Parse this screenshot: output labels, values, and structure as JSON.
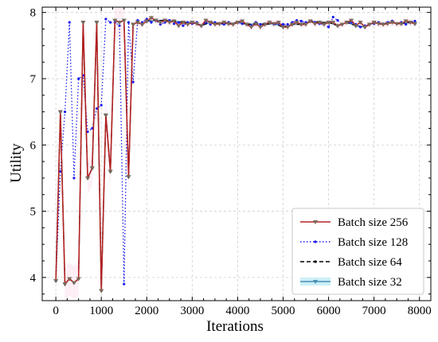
{
  "chart_data": {
    "type": "line",
    "title": "",
    "xlabel": "Iterations",
    "ylabel": "Utility",
    "xlim": [
      -300,
      8250
    ],
    "ylim": [
      3.65,
      8.08
    ],
    "xticks": [
      "0",
      "1000",
      "2000",
      "3000",
      "4000",
      "5000",
      "6000",
      "7000",
      "8000"
    ],
    "xtick_values": [
      0,
      1000,
      2000,
      3000,
      4000,
      5000,
      6000,
      7000,
      8000
    ],
    "yticks": [
      "4",
      "5",
      "6",
      "7",
      "8"
    ],
    "ytick_values": [
      4,
      5,
      6,
      7,
      8
    ],
    "grid": true,
    "legend_position": "bottom-right",
    "series": [
      {
        "name": "Batch size 256",
        "color": "#b22222",
        "style": "solid",
        "marker": "triangle-down",
        "x": [
          0,
          100,
          200,
          300,
          400,
          500,
          600,
          700,
          800,
          900,
          1000,
          1100,
          1200,
          1300,
          1400,
          1500,
          1600,
          1700,
          1800,
          1900,
          2000,
          2100,
          2200,
          2300,
          2400,
          2500,
          2600,
          2700,
          2800,
          2900,
          3000,
          3100,
          3200,
          3300,
          3400,
          3500,
          3600,
          3700,
          3800,
          3900,
          4000,
          4100,
          4200,
          4300,
          4400,
          4500,
          4600,
          4700,
          4800,
          4900,
          5000,
          5100,
          5200,
          5300,
          5400,
          5500,
          5600,
          5700,
          5800,
          5900,
          6000,
          6100,
          6200,
          6300,
          6400,
          6500,
          6600,
          6700,
          6800,
          6900,
          7000,
          7100,
          7200,
          7300,
          7400,
          7500,
          7600,
          7700,
          7800,
          7900
        ],
        "y": [
          3.95,
          6.5,
          3.9,
          3.98,
          3.92,
          3.98,
          7.85,
          5.5,
          5.65,
          7.85,
          3.8,
          6.45,
          5.6,
          7.88,
          7.85,
          7.88,
          5.52,
          7.82,
          7.85,
          7.82,
          7.87,
          7.92,
          7.88,
          7.85,
          7.88,
          7.85,
          7.87,
          7.8,
          7.85,
          7.82,
          7.85,
          7.83,
          7.8,
          7.88,
          7.85,
          7.82,
          7.83,
          7.85,
          7.83,
          7.82,
          7.85,
          7.87,
          7.82,
          7.78,
          7.83,
          7.78,
          7.82,
          7.85,
          7.83,
          7.85,
          7.78,
          7.78,
          7.82,
          7.85,
          7.82,
          7.82,
          7.87,
          7.83,
          7.85,
          7.82,
          7.85,
          7.85,
          7.8,
          7.82,
          7.85,
          7.88,
          7.8,
          7.85,
          7.78,
          7.82,
          7.85,
          7.83,
          7.82,
          7.83,
          7.85,
          7.83,
          7.83,
          7.87,
          7.85,
          7.83
        ]
      },
      {
        "name": "Batch size 128",
        "color": "#1a1aee",
        "style": "dotted",
        "marker": "dot",
        "x": [
          0,
          100,
          200,
          300,
          400,
          500,
          600,
          700,
          800,
          900,
          1000,
          1100,
          1200,
          1300,
          1400,
          1500,
          1600,
          1700,
          1800,
          1900,
          2000,
          2100,
          2200,
          2300,
          2400,
          2500,
          2600,
          2700,
          2800,
          2900,
          3000,
          3100,
          3200,
          3300,
          3400,
          3500,
          3600,
          3700,
          3800,
          3900,
          4000,
          4100,
          4200,
          4300,
          4400,
          4500,
          4600,
          4700,
          4800,
          4900,
          5000,
          5100,
          5200,
          5300,
          5400,
          5500,
          5600,
          5700,
          5800,
          5900,
          6000,
          6100,
          6200,
          6300,
          6400,
          6500,
          6600,
          6700,
          6800,
          6900,
          7000,
          7100,
          7200,
          7300,
          7400,
          7500,
          7600,
          7700,
          7800,
          7900
        ],
        "y": [
          3.95,
          5.6,
          6.5,
          7.85,
          5.5,
          7.0,
          7.05,
          6.2,
          6.25,
          6.55,
          6.6,
          7.9,
          7.85,
          7.85,
          7.8,
          3.9,
          7.85,
          6.95,
          7.88,
          7.85,
          7.9,
          7.85,
          7.88,
          7.82,
          7.85,
          7.88,
          7.83,
          7.85,
          7.8,
          7.85,
          7.83,
          7.85,
          7.8,
          7.85,
          7.82,
          7.85,
          7.83,
          7.82,
          7.85,
          7.82,
          7.85,
          7.83,
          7.82,
          7.8,
          7.85,
          7.82,
          7.83,
          7.85,
          7.82,
          7.83,
          7.82,
          7.82,
          7.85,
          7.88,
          7.87,
          7.85,
          7.87,
          7.85,
          7.83,
          7.82,
          7.78,
          7.93,
          7.88,
          7.82,
          7.85,
          7.85,
          7.82,
          7.78,
          7.8,
          7.82,
          7.83,
          7.85,
          7.83,
          7.85,
          7.87,
          7.83,
          7.85,
          7.82,
          7.85,
          7.87
        ]
      },
      {
        "name": "Batch size 64",
        "color": "#000000",
        "style": "dashed",
        "marker": "dot",
        "x": [
          0,
          100,
          200,
          300,
          400,
          500,
          600,
          700,
          800,
          900,
          1000,
          1100,
          1200,
          1300,
          1400,
          1500,
          1600,
          1700,
          1800,
          1900,
          2000,
          2200,
          2400,
          2600,
          2800,
          3000,
          3200,
          3400,
          3600,
          3800,
          4000,
          4200,
          4400,
          4600,
          4800,
          5000,
          5200,
          5400,
          5600,
          5800,
          6000,
          6200,
          6400,
          6600,
          6800,
          7000,
          7200,
          7400,
          7600,
          7800,
          7900
        ],
        "y": [
          3.95,
          6.5,
          3.9,
          3.98,
          3.92,
          3.98,
          7.85,
          5.5,
          5.65,
          7.85,
          3.8,
          6.45,
          5.6,
          7.88,
          7.85,
          7.88,
          5.52,
          7.82,
          7.85,
          7.82,
          7.87,
          7.88,
          7.88,
          7.87,
          7.85,
          7.85,
          7.8,
          7.85,
          7.83,
          7.83,
          7.85,
          7.82,
          7.83,
          7.82,
          7.83,
          7.78,
          7.82,
          7.82,
          7.87,
          7.85,
          7.85,
          7.8,
          7.85,
          7.8,
          7.78,
          7.85,
          7.82,
          7.85,
          7.83,
          7.85,
          7.83
        ]
      },
      {
        "name": "Batch size 32",
        "color": "#4a8fb5",
        "style": "solid",
        "marker": "triangle-down",
        "x": [
          0,
          100,
          200,
          300,
          400,
          500,
          600,
          700,
          800,
          900,
          1000,
          1100,
          1200,
          1300,
          1400,
          1500,
          1600,
          1700,
          1800,
          1900,
          2000,
          2200,
          2400,
          2600,
          2800,
          3000,
          3200,
          3400,
          3600,
          3800,
          4000,
          4200,
          4400,
          4600,
          4800,
          5000,
          5200,
          5400,
          5600,
          5800,
          6000,
          6200,
          6400,
          6600,
          6800,
          7000,
          7200,
          7400,
          7600,
          7800,
          7900
        ],
        "y": [
          3.95,
          6.5,
          3.9,
          3.98,
          3.92,
          3.98,
          7.85,
          5.5,
          5.65,
          7.85,
          3.8,
          6.45,
          5.6,
          7.88,
          7.85,
          7.88,
          5.52,
          7.82,
          7.85,
          7.82,
          7.87,
          7.88,
          7.88,
          7.87,
          7.85,
          7.85,
          7.8,
          7.85,
          7.83,
          7.83,
          7.85,
          7.82,
          7.83,
          7.82,
          7.83,
          7.78,
          7.82,
          7.82,
          7.87,
          7.85,
          7.85,
          7.8,
          7.85,
          7.8,
          7.78,
          7.85,
          7.82,
          7.85,
          7.83,
          7.85,
          7.83
        ]
      }
    ]
  }
}
